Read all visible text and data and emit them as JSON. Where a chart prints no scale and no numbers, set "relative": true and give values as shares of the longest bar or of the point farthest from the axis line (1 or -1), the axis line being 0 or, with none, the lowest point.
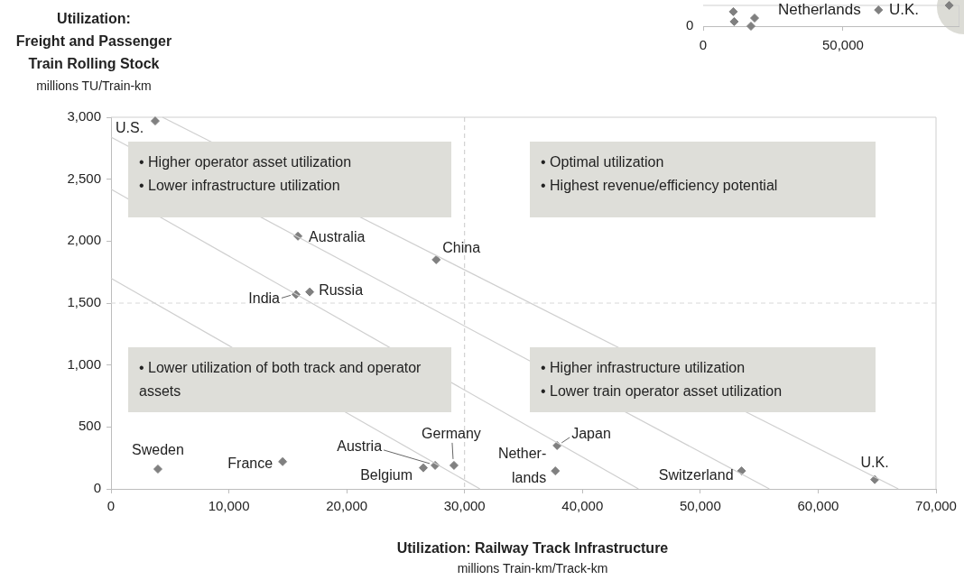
{
  "chart_data": [
    {
      "type": "scatter",
      "xlabel": "Utilization: Railway Track Infrastructure\nmillions Train-km/Track-km",
      "ylabel": "Utilization:\nFreight and Passenger\nTrain Rolling Stock\nmillions TU/Train-km",
      "xlim": [
        0,
        70000
      ],
      "xticks": [
        0,
        {
          "value": 10000,
          "label": "10,000"
        },
        {
          "value": 20000,
          "label": "20,000"
        },
        {
          "value": 30000,
          "label": "30,000"
        },
        {
          "value": 40000,
          "label": "40,000"
        },
        {
          "value": 50000,
          "label": "50,000"
        },
        {
          "value": 60000,
          "label": "60,000"
        },
        {
          "value": 70000,
          "label": "70,000"
        }
      ],
      "ylim": [
        0,
        3000
      ],
      "yticks": [
        0,
        500,
        {
          "value": 1000,
          "label": "1,000"
        },
        {
          "value": 1500,
          "label": "1,500"
        },
        {
          "value": 2000,
          "label": "2,000"
        },
        {
          "value": 2500,
          "label": "2,500"
        },
        {
          "value": 3000,
          "label": "3,000"
        }
      ],
      "grid": false,
      "legend": false,
      "marker": "diamond",
      "ref_lines": [
        {
          "axis": "x",
          "value": 30000,
          "color": "#c8c8c8",
          "line_style": "dashed"
        },
        {
          "axis": "y",
          "value": 1500,
          "color": "#d8d8d8",
          "line_style": "dashed"
        }
      ],
      "annotations": [
        "• Higher operator asset utilization\n• Lower infrastructure utilization",
        "• Optimal utilization\n• Highest revenue/efficiency potential",
        "• Lower utilization of both track and operator assets",
        "• Higher infrastructure utilization\n• Lower train operator asset utilization"
      ],
      "series": [
        {
          "type": "line",
          "color": "#cfcfcf",
          "marker": "none",
          "x": [
            0,
            31300
          ],
          "values": [
            1700,
            0
          ]
        },
        {
          "type": "line",
          "color": "#cfcfcf",
          "marker": "none",
          "x": [
            0,
            44750
          ],
          "values": [
            2420,
            0
          ]
        },
        {
          "type": "line",
          "color": "#cfcfcf",
          "marker": "none",
          "x": [
            0,
            55860
          ],
          "values": [
            2840,
            0
          ]
        },
        {
          "type": "line",
          "color": "#cfcfcf",
          "marker": "none",
          "x": [
            4370,
            66800
          ],
          "values": [
            3000,
            0
          ]
        },
        {
          "name": "U.S.",
          "color": "#808080",
          "x": [
            3750
          ],
          "values": [
            2970
          ]
        },
        {
          "name": "Australia",
          "color": "#808080",
          "x": [
            15860
          ],
          "values": [
            2040
          ]
        },
        {
          "name": "China",
          "color": "#808080",
          "x": [
            27590
          ],
          "values": [
            1850
          ]
        },
        {
          "name": "India",
          "color": "#808080",
          "x": [
            15700
          ],
          "values": [
            1570
          ]
        },
        {
          "name": "Russia",
          "color": "#808080",
          "x": [
            16860
          ],
          "values": [
            1590
          ]
        },
        {
          "name": "Sweden",
          "color": "#808080",
          "x": [
            3980
          ],
          "values": [
            160
          ]
        },
        {
          "name": "France",
          "color": "#808080",
          "x": [
            14560
          ],
          "values": [
            220
          ]
        },
        {
          "name": "Belgium",
          "color": "#808080",
          "x": [
            26500
          ],
          "values": [
            170
          ]
        },
        {
          "name": "Austria",
          "color": "#808080",
          "x": [
            27500
          ],
          "values": [
            190
          ]
        },
        {
          "name": "Germany",
          "color": "#808080",
          "x": [
            29100
          ],
          "values": [
            190
          ]
        },
        {
          "name": "Nether-\nlands",
          "color": "#808080",
          "x": [
            37700
          ],
          "values": [
            145
          ]
        },
        {
          "name": "Japan",
          "color": "#808080",
          "x": [
            37850
          ],
          "values": [
            350
          ]
        },
        {
          "name": "Switzerland",
          "color": "#808080",
          "x": [
            53500
          ],
          "values": [
            145
          ]
        },
        {
          "name": "U.K.",
          "color": "#808080",
          "x": [
            64800
          ],
          "values": [
            75
          ]
        }
      ]
    },
    {
      "type": "scatter",
      "relative": true,
      "grid": false,
      "legend": false,
      "marker": "diamond",
      "xlim": [
        0,
        91500
      ],
      "xticks": [
        0,
        {
          "value": 50000,
          "label": "50,000"
        }
      ],
      "annotations": [
        "Netherlands",
        "U.K.",
        "0"
      ],
      "series": [
        {
          "color": "#808080",
          "x": [
            10800,
            11100,
            18400,
            17100,
            62700,
            88000
          ],
          "values": [
            0.7,
            0.22,
            0.39,
            0,
            0.78,
            1
          ]
        }
      ]
    }
  ]
}
